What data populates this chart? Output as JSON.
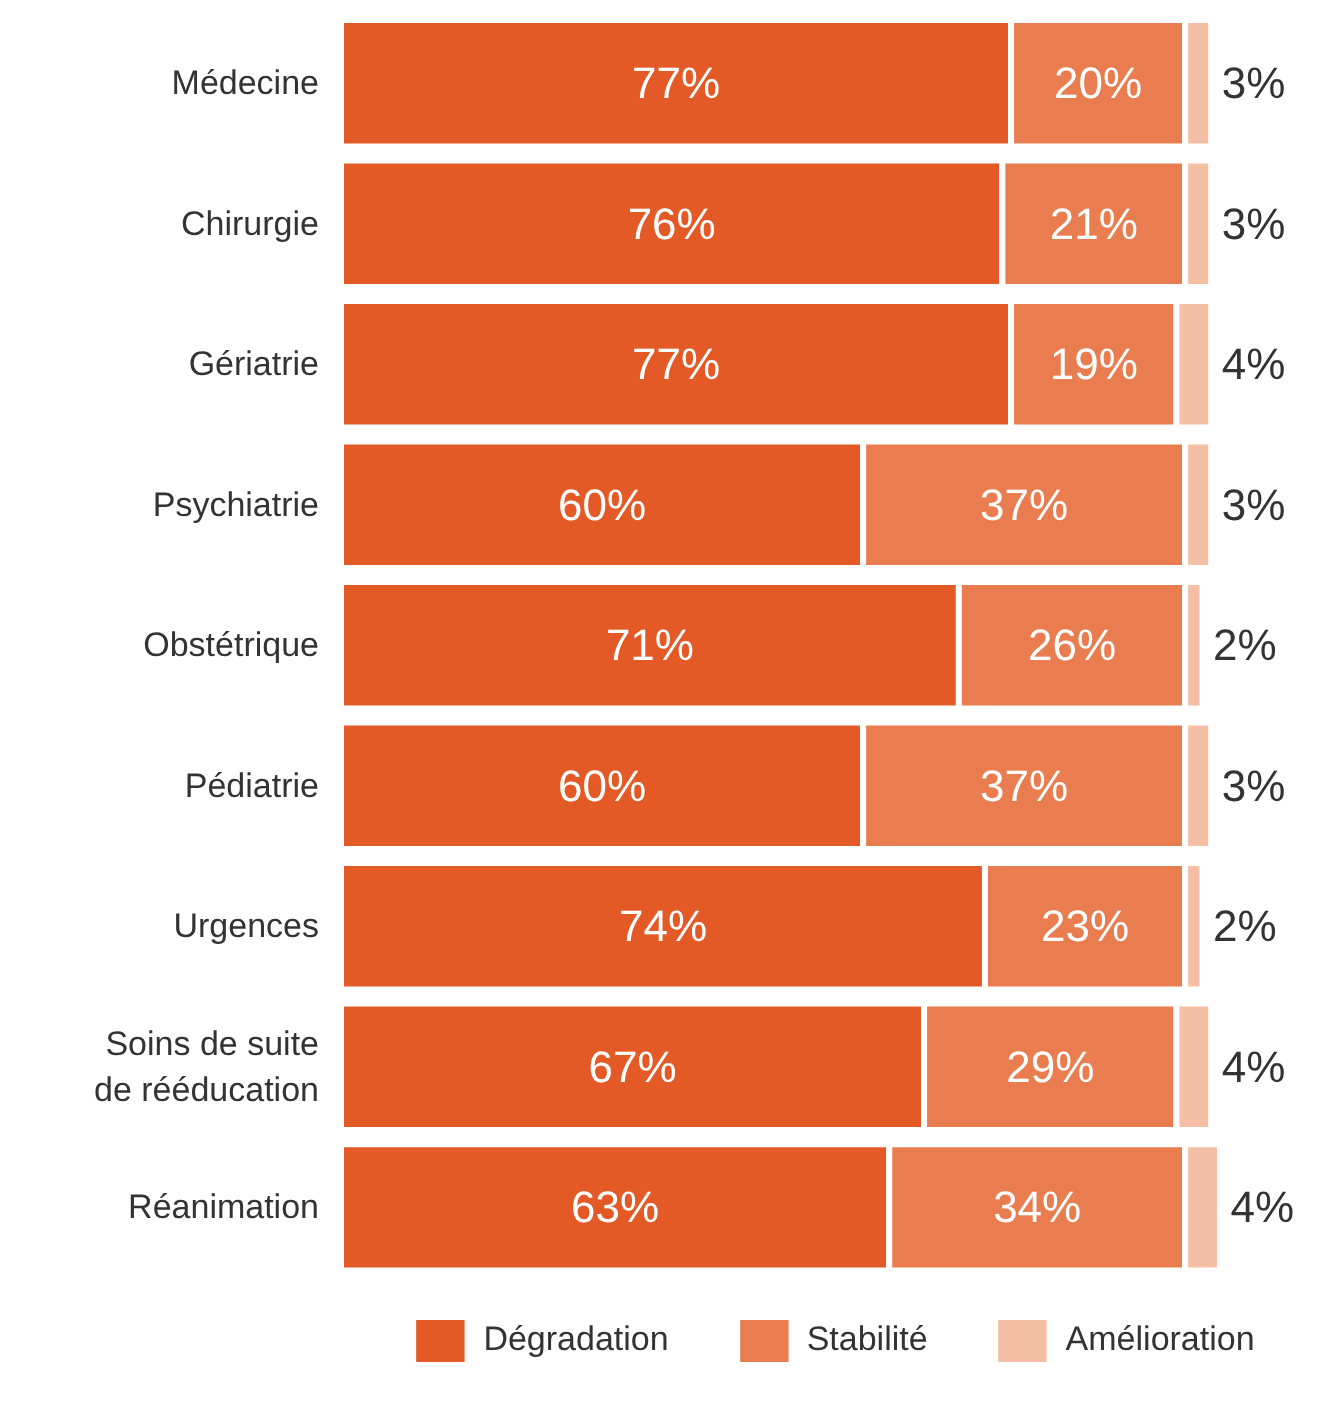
{
  "chart_data": {
    "type": "bar",
    "orientation": "horizontal",
    "stacked": true,
    "legend": "bottom",
    "grid": false,
    "categories": [
      "Médecine",
      "Chirurgie",
      "Gériatrie",
      "Psychiatrie",
      "Obstétrique",
      "Pédiatrie",
      "Urgences",
      "Soins de suite\nde rééducation",
      "Réanimation"
    ],
    "series": [
      {
        "name": "Dégradation",
        "color": "#e35a27",
        "values": [
          77,
          76,
          77,
          60,
          71,
          60,
          74,
          67,
          63
        ],
        "value_labels": [
          "77%",
          "76%",
          "77%",
          "60%",
          "71%",
          "60%",
          "74%",
          "67%",
          "63%"
        ]
      },
      {
        "name": "Stabilité",
        "color": "#e97d4f",
        "values": [
          20,
          21,
          19,
          37,
          26,
          37,
          23,
          29,
          34
        ],
        "value_labels": [
          "20%",
          "21%",
          "19%",
          "37%",
          "26%",
          "37%",
          "23%",
          "29%",
          "34%"
        ]
      },
      {
        "name": "Amélioration",
        "color": "#f5bfa5",
        "values": [
          3,
          3,
          4,
          3,
          2,
          3,
          2,
          4,
          4
        ],
        "value_labels": [
          "3%",
          "3%",
          "4%",
          "3%",
          "2%",
          "3%",
          "2%",
          "4%",
          "4%"
        ]
      }
    ]
  }
}
